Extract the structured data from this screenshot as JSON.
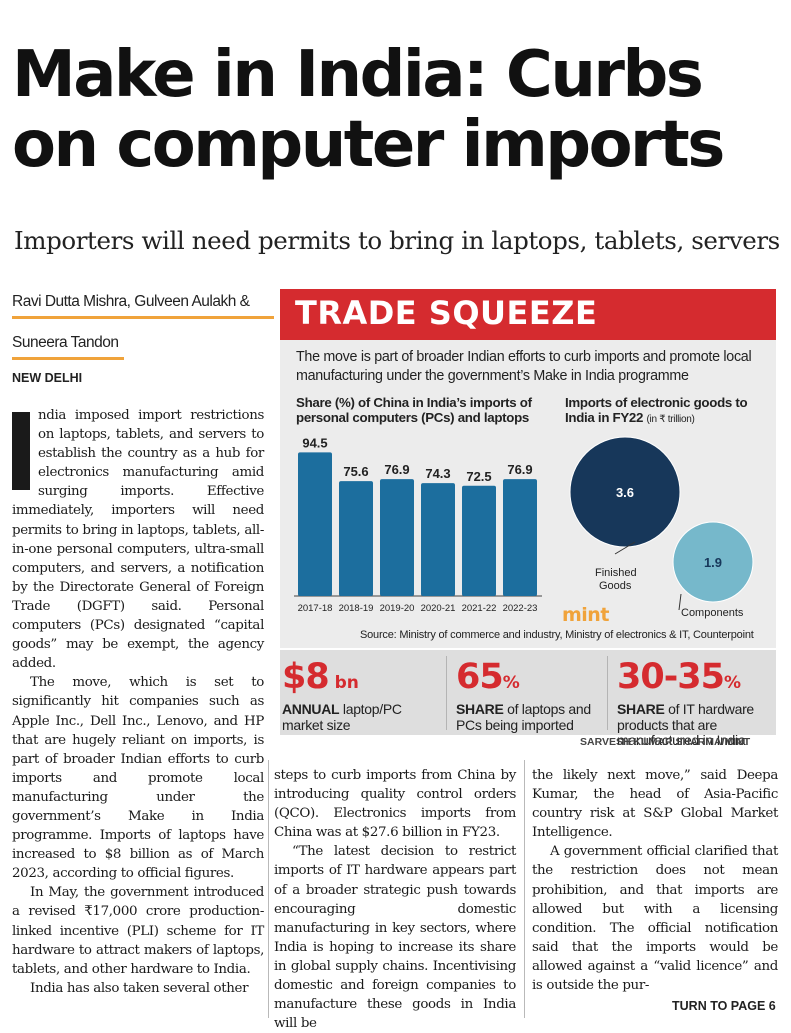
{
  "article": {
    "headline_line1": "Make in India: Curbs",
    "headline_line2": "on computer imports",
    "subhead": "Importers will need permits to bring in laptops, tablets, servers",
    "byline_line1": "Ravi Dutta Mishra, Gulveen Aulakh &",
    "byline_line2": "Suneera Tandon",
    "dateline": "NEW DELHI",
    "col1_para1": "ndia imposed import restrictions on laptops, tablets, and servers to establish the country as a hub for electronics manufacturing amid surging imports. Effective immediately, importers will need permits to bring in laptops, tablets, all-in-one personal computers, ultra-small computers, and servers, a notification by the Directorate General of Foreign Trade (DGFT) said. Personal computers (PCs) designated “capital goods” may be exempt, the agency added.",
    "col1_para2": "The move, which is set to significantly hit companies such as Apple Inc., Dell Inc., Lenovo, and HP that are hugely reliant on imports, is part of broader Indian efforts to curb imports and promote local manufacturing under the government’s Make in India programme. Imports of laptops have increased to $8 billion as of March 2023, according to official figures.",
    "col1_para3": "In May, the government introduced a revised ₹17,000 crore production-linked incentive (PLI) scheme for IT hardware to attract makers of laptops, tablets, and other hardware to India.",
    "col1_para4": "India has also taken several other",
    "col2_para1": "steps to curb imports from China by introducing quality control orders (QCO). Electronics imports from China was at $27.6 billion in FY23.",
    "col2_para2": "“The latest decision to restrict imports of IT hardware appears part of a broader strategic push towards encouraging domestic manufacturing in key sectors, where India is hoping to increase its share in global supply chains. Incentivising domestic and foreign companies to manufacture these goods in India will be",
    "col3_para1": "the likely next move,” said Deepa Kumar, the head of Asia-Pacific country risk at S&P Global Market Intelligence.",
    "col3_para2": "A government official clarified that the restriction does not mean prohibition, and that imports are allowed but with a licensing condition. The official notification said that the imports would be allowed against a “valid licence” and is outside the pur-",
    "turn_to": "TURN TO PAGE 6"
  },
  "graphic": {
    "banner": "TRADE SQUEEZE",
    "intro": "The move is part of broader Indian efforts to curb imports and promote local manufacturing under the government’s Make in India programme",
    "source": "Source: Ministry of commerce and industry, Ministry of electronics & IT, Counterpoint",
    "brand": "mint",
    "credit": "SARVESH KUMAR SHARMA/MINT",
    "colors": {
      "banner_red": "#d52b2f",
      "bar_blue": "#1c6e9e",
      "finished_navy": "#17375a",
      "components_teal": "#76b8cb",
      "accent_orange": "#f0a33b"
    }
  },
  "stats": [
    {
      "value": "$8",
      "unit": " bn",
      "bold": "ANNUAL",
      "text": " laptop/PC market size"
    },
    {
      "value": "65",
      "unit": "%",
      "bold": "SHARE",
      "text": " of laptops and PCs being imported"
    },
    {
      "value": "30-35",
      "unit": "%",
      "bold": "SHARE",
      "text": " of IT hardware products that are manufactured in India"
    }
  ],
  "chart_data": [
    {
      "type": "bar",
      "title": "Share (%) of China in India’s imports of personal computers (PCs) and laptops",
      "categories": [
        "2017-18",
        "2018-19",
        "2019-20",
        "2020-21",
        "2021-22",
        "2022-23"
      ],
      "values": [
        94.5,
        75.6,
        76.9,
        74.3,
        72.5,
        76.9
      ],
      "labels": [
        "94.5",
        "75.6",
        "76.9",
        "74.3",
        "72.5",
        "76.9"
      ],
      "ylim": [
        0,
        100
      ],
      "color": "#1c6e9e",
      "grid": false
    },
    {
      "type": "bubble",
      "title": "Imports of electronic goods to India in FY22",
      "unit_note": "(in ₹ trillion)",
      "items": [
        {
          "name": "Finished Goods",
          "value": 3.6,
          "label": "3.6",
          "color": "#17375a"
        },
        {
          "name": "Components",
          "value": 1.9,
          "label": "1.9",
          "color": "#76b8cb"
        }
      ]
    }
  ]
}
